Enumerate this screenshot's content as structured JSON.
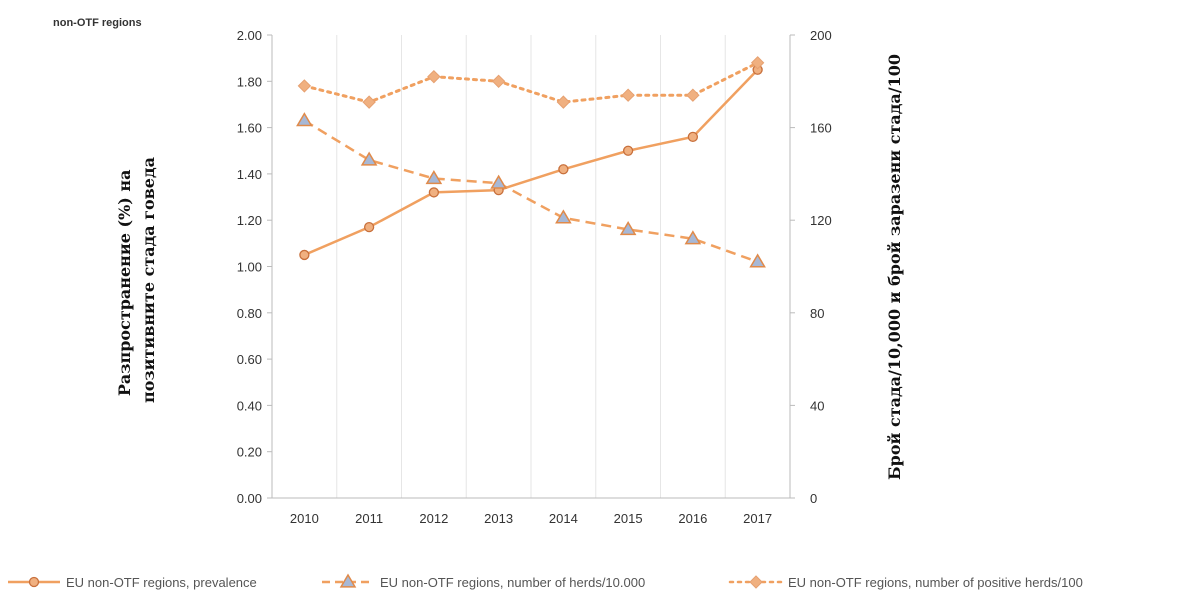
{
  "chart_data": {
    "type": "line",
    "title": "",
    "corner_label": "non-OTF regions",
    "categories": [
      "2010",
      "2011",
      "2012",
      "2013",
      "2014",
      "2015",
      "2016",
      "2017"
    ],
    "ylabel_left": [
      "Разпространение (%) на",
      "позитивните стада говеда"
    ],
    "ylabel_right": "Брой стада/10,000 и брой заразени стада/100",
    "left_axis": {
      "range": [
        0,
        2
      ],
      "ticks": [
        "0.00",
        "0.20",
        "0.40",
        "0.60",
        "0.80",
        "1.00",
        "1.20",
        "1.40",
        "1.60",
        "1.80",
        "2.00"
      ]
    },
    "right_axis": {
      "range": [
        0,
        200
      ],
      "ticks": [
        "0",
        "40",
        "80",
        "120",
        "160",
        "200"
      ]
    },
    "grid": "vertical lines at category boundaries",
    "legend_position": "bottom",
    "colors": {
      "series": "#f0a060",
      "marker_fill": "#f0b080",
      "triangle_fill": "#a7b8d6",
      "triangle_stroke": "#e08a4a",
      "axis": "#bbbbbb",
      "grid": "#e6e6e6"
    },
    "series": [
      {
        "name": "EU non-OTF regions, prevalence",
        "axis": "left",
        "style": "solid",
        "marker": "circle",
        "values": [
          1.05,
          1.17,
          1.32,
          1.33,
          1.42,
          1.5,
          1.56,
          1.85
        ]
      },
      {
        "name": "EU non-OTF regions, number of herds/10.000",
        "axis": "right",
        "style": "dashed",
        "marker": "triangle",
        "values": [
          163,
          146,
          138,
          136,
          121,
          116,
          112,
          102
        ]
      },
      {
        "name": "EU non-OTF regions, number of positive herds/100",
        "axis": "right",
        "style": "dotted",
        "marker": "diamond",
        "values": [
          178,
          171,
          182,
          180,
          171,
          174,
          174,
          188
        ]
      }
    ]
  }
}
